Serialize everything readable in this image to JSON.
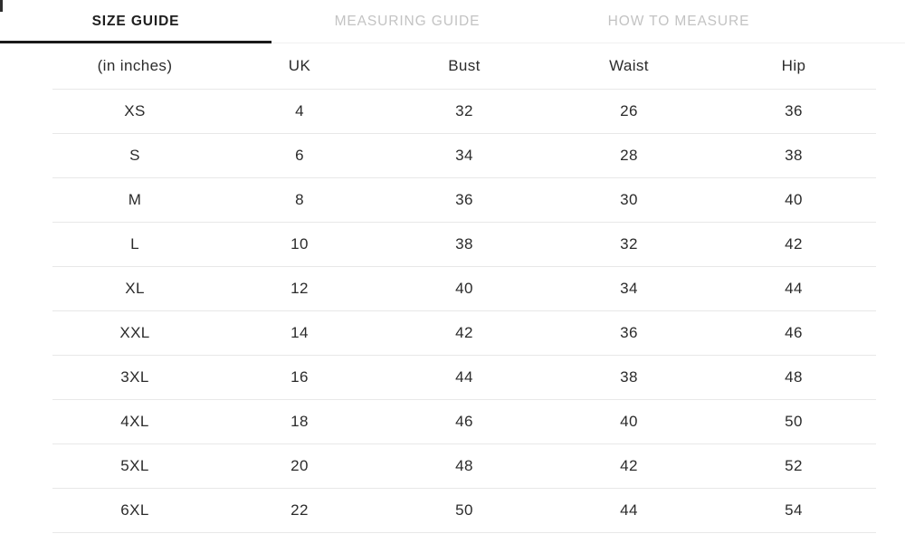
{
  "tabs": {
    "items": [
      {
        "label": "SIZE GUIDE",
        "active": true
      },
      {
        "label": "MEASURING GUIDE",
        "active": false
      },
      {
        "label": "HOW TO MEASURE",
        "active": false
      }
    ]
  },
  "size_table": {
    "unit_header": "(in inches)",
    "columns": [
      "UK",
      "Bust",
      "Waist",
      "Hip"
    ],
    "rows": [
      {
        "size": "XS",
        "values": [
          "4",
          "32",
          "26",
          "36"
        ]
      },
      {
        "size": "S",
        "values": [
          "6",
          "34",
          "28",
          "38"
        ]
      },
      {
        "size": "M",
        "values": [
          "8",
          "36",
          "30",
          "40"
        ]
      },
      {
        "size": "L",
        "values": [
          "10",
          "38",
          "32",
          "42"
        ]
      },
      {
        "size": "XL",
        "values": [
          "12",
          "40",
          "34",
          "44"
        ]
      },
      {
        "size": "XXL",
        "values": [
          "14",
          "42",
          "36",
          "46"
        ]
      },
      {
        "size": "3XL",
        "values": [
          "16",
          "44",
          "38",
          "48"
        ]
      },
      {
        "size": "4XL",
        "values": [
          "18",
          "46",
          "40",
          "50"
        ]
      },
      {
        "size": "5XL",
        "values": [
          "20",
          "48",
          "42",
          "52"
        ]
      },
      {
        "size": "6XL",
        "values": [
          "22",
          "50",
          "44",
          "54"
        ]
      }
    ]
  },
  "colors": {
    "text": "#2b2b2b",
    "tab_active": "#1e1e1e",
    "tab_inactive": "#c3c3c3",
    "active_underline": "#1a1a1a",
    "row_separator": "#e8e8e8"
  }
}
